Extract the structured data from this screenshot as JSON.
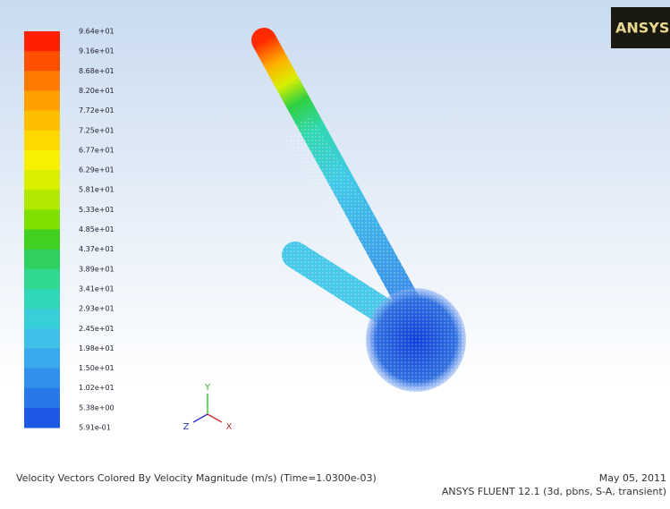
{
  "legend": {
    "labels": [
      "9.64e+01",
      "9.16e+01",
      "8.68e+01",
      "8.20e+01",
      "7.72e+01",
      "7.25e+01",
      "6.77e+01",
      "6.29e+01",
      "5.81e+01",
      "5.33e+01",
      "4.85e+01",
      "4.37e+01",
      "3.89e+01",
      "3.41e+01",
      "2.93e+01",
      "2.45e+01",
      "1.98e+01",
      "1.50e+01",
      "1.02e+01",
      "5.38e+00",
      "5.91e-01"
    ]
  },
  "axes": {
    "y": "Y",
    "z": "Z",
    "x": "X"
  },
  "logo": "ANSYS",
  "footer": {
    "caption": "Velocity Vectors Colored By Velocity Magnitude (m/s)  (Time=1.0300e-03)",
    "date": "May 05, 2011",
    "solver": "ANSYS FLUENT 12.1 (3d, pbns, S-A, transient)"
  }
}
